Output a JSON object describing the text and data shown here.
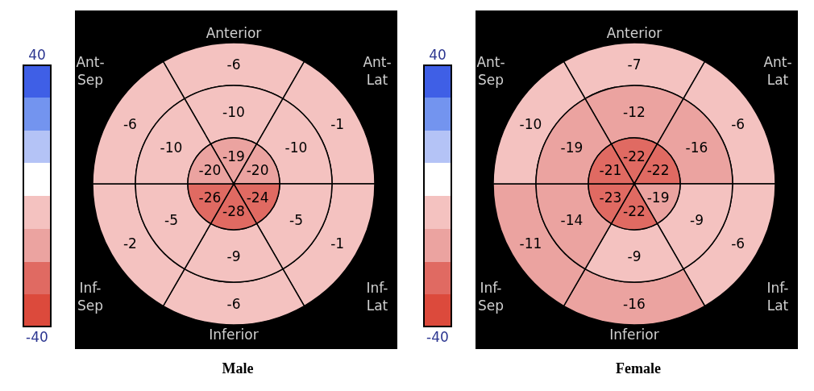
{
  "chart_data": [
    {
      "type": "other",
      "title": "Male",
      "categories": [
        "Anterior",
        "Ant-Lat",
        "Inf-Lat",
        "Inferior",
        "Inf-Sep",
        "Ant-Sep"
      ],
      "data_labels": true,
      "series": [
        {
          "values": [
            -6,
            -1,
            -1,
            -6,
            -2,
            -6
          ],
          "colors": [
            "#f4c2c0",
            "#f4c2c0",
            "#f4c2c0",
            "#f4c2c0",
            "#f4c2c0",
            "#f4c2c0"
          ]
        },
        {
          "values": [
            -10,
            -10,
            -5,
            -9,
            -5,
            -10
          ],
          "colors": [
            "#f4c2c0",
            "#f4c2c0",
            "#f4c2c0",
            "#f4c2c0",
            "#f4c2c0",
            "#f4c2c0"
          ]
        },
        {
          "values": [
            -19,
            -20,
            -24,
            -28,
            -26,
            -20
          ],
          "colors": [
            "#eba3a0",
            "#eba3a0",
            "#e06a62",
            "#e06a62",
            "#e06a62",
            "#eba3a0"
          ]
        }
      ],
      "annotations": [
        "40",
        "-40"
      ]
    },
    {
      "type": "other",
      "title": "Female",
      "categories": [
        "Anterior",
        "Ant-Lat",
        "Inf-Lat",
        "Inferior",
        "Inf-Sep",
        "Ant-Sep"
      ],
      "data_labels": true,
      "series": [
        {
          "values": [
            -7,
            -6,
            -6,
            -16,
            -11,
            -10
          ],
          "colors": [
            "#f4c2c0",
            "#f4c2c0",
            "#f4c2c0",
            "#eba3a0",
            "#eba3a0",
            "#f4c2c0"
          ]
        },
        {
          "values": [
            -12,
            -16,
            -9,
            -9,
            -14,
            -19
          ],
          "colors": [
            "#eba3a0",
            "#eba3a0",
            "#f4c2c0",
            "#f4c2c0",
            "#eba3a0",
            "#eba3a0"
          ]
        },
        {
          "values": [
            -22,
            -22,
            -19,
            -22,
            -23,
            -21
          ],
          "colors": [
            "#e06a62",
            "#e06a62",
            "#eba3a0",
            "#e06a62",
            "#e06a62",
            "#e06a62"
          ]
        }
      ],
      "annotations": [
        "40",
        "-40"
      ]
    }
  ]
}
